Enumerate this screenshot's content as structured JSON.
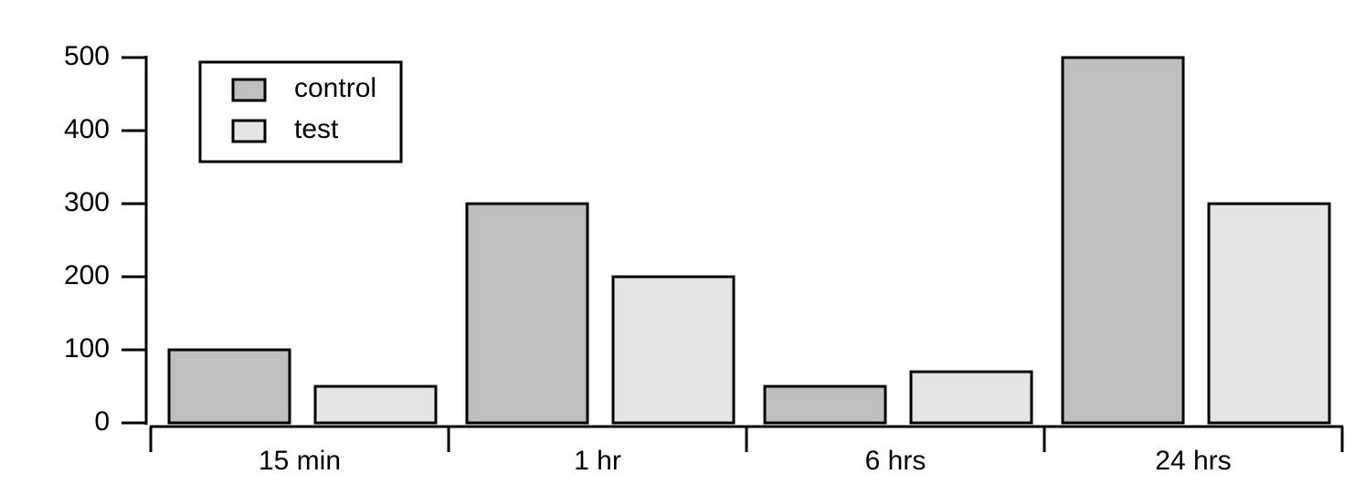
{
  "chart_data": {
    "type": "bar",
    "categories": [
      "15 min",
      "1 hr",
      "6 hrs",
      "24 hrs"
    ],
    "series": [
      {
        "name": "control",
        "color": "#bebebe",
        "values": [
          100,
          300,
          50,
          500
        ]
      },
      {
        "name": "test",
        "color": "#e5e5e5",
        "values": [
          50,
          200,
          70,
          300
        ]
      }
    ],
    "ylim": [
      0,
      500
    ],
    "yticks": [
      0,
      100,
      200,
      300,
      400,
      500
    ],
    "grid": false,
    "legend": "top-left"
  }
}
